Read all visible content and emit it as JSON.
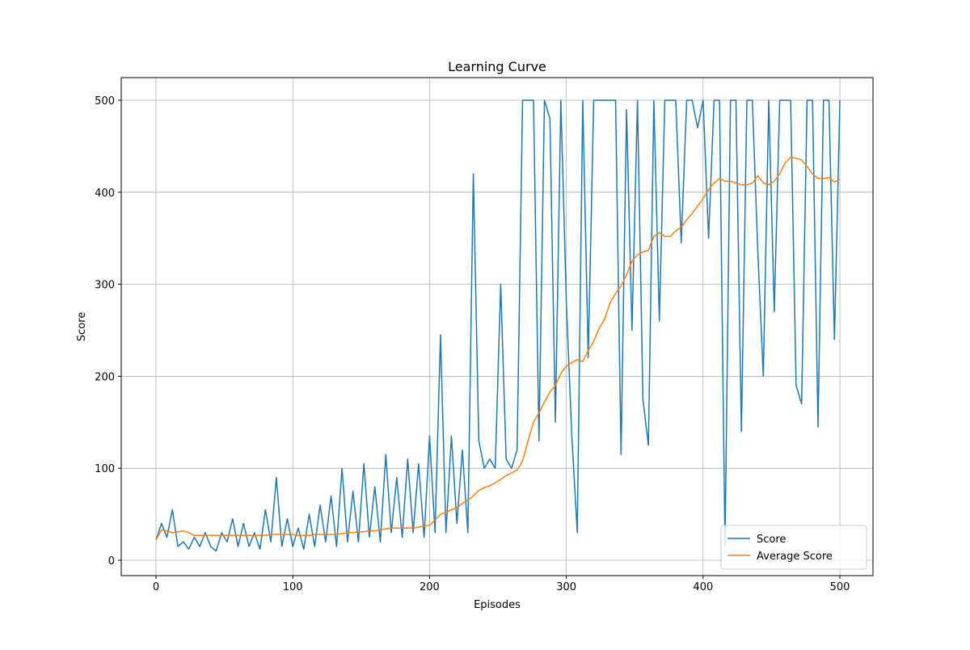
{
  "chart_data": {
    "type": "line",
    "title": "Learning Curve",
    "x_label": "Episodes",
    "y_label": "Score",
    "x": [
      0,
      4,
      8,
      12,
      16,
      20,
      24,
      28,
      32,
      36,
      40,
      44,
      48,
      52,
      56,
      60,
      64,
      68,
      72,
      76,
      80,
      84,
      88,
      92,
      96,
      100,
      104,
      108,
      112,
      116,
      120,
      124,
      128,
      132,
      136,
      140,
      144,
      148,
      152,
      156,
      160,
      164,
      168,
      172,
      176,
      180,
      184,
      188,
      192,
      196,
      200,
      204,
      208,
      212,
      216,
      220,
      224,
      228,
      232,
      236,
      240,
      244,
      248,
      252,
      256,
      260,
      264,
      268,
      272,
      276,
      280,
      284,
      288,
      292,
      296,
      300,
      304,
      308,
      312,
      316,
      320,
      324,
      328,
      332,
      336,
      340,
      344,
      348,
      352,
      356,
      360,
      364,
      368,
      372,
      376,
      380,
      384,
      388,
      392,
      396,
      400,
      404,
      408,
      412,
      416,
      420,
      424,
      428,
      432,
      436,
      440,
      444,
      448,
      452,
      456,
      460,
      464,
      468,
      472,
      476,
      480,
      484,
      488,
      492,
      496,
      500
    ],
    "series": [
      {
        "name": "Score",
        "color": "#1f77b4",
        "values": [
          22,
          40,
          25,
          55,
          15,
          20,
          12,
          25,
          15,
          30,
          15,
          10,
          30,
          20,
          45,
          15,
          40,
          15,
          30,
          12,
          55,
          20,
          90,
          15,
          45,
          15,
          35,
          12,
          50,
          15,
          60,
          20,
          70,
          15,
          100,
          20,
          75,
          20,
          105,
          25,
          80,
          20,
          115,
          30,
          90,
          25,
          110,
          30,
          105,
          25,
          135,
          30,
          245,
          30,
          135,
          40,
          120,
          30,
          420,
          130,
          100,
          110,
          100,
          300,
          110,
          100,
          120,
          500,
          500,
          500,
          130,
          500,
          480,
          150,
          500,
          280,
          135,
          30,
          500,
          220,
          500,
          500,
          500,
          500,
          500,
          115,
          490,
          250,
          500,
          175,
          125,
          500,
          260,
          500,
          500,
          500,
          345,
          500,
          500,
          470,
          500,
          350,
          500,
          500,
          15,
          500,
          500,
          140,
          500,
          500,
          335,
          200,
          500,
          270,
          500,
          500,
          500,
          190,
          170,
          500,
          500,
          145,
          500,
          500,
          240,
          500
        ]
      },
      {
        "name": "Average Score",
        "color": "#ff7f0e",
        "values": [
          22,
          33,
          32,
          30,
          31,
          32,
          30,
          27,
          27,
          27,
          27,
          27,
          27,
          27,
          27,
          27,
          27,
          27,
          27,
          27,
          27,
          28,
          28,
          28,
          28,
          28,
          27,
          27,
          27,
          28,
          28,
          28,
          28,
          28,
          29,
          30,
          30,
          31,
          31,
          32,
          32,
          33,
          34,
          35,
          35,
          35,
          35,
          35,
          36,
          37,
          38,
          44,
          50,
          52,
          55,
          57,
          62,
          65,
          70,
          76,
          79,
          81,
          84,
          88,
          92,
          95,
          98,
          108,
          130,
          150,
          160,
          172,
          183,
          190,
          203,
          211,
          215,
          218,
          216,
          228,
          238,
          252,
          262,
          280,
          290,
          298,
          310,
          325,
          332,
          335,
          337,
          352,
          356,
          352,
          352,
          358,
          362,
          370,
          377,
          385,
          393,
          403,
          410,
          415,
          412,
          412,
          410,
          408,
          408,
          410,
          418,
          410,
          408,
          412,
          420,
          432,
          438,
          437,
          435,
          428,
          420,
          415,
          415,
          416,
          411,
          414
        ]
      }
    ],
    "xlim": [
      -25.4,
      524.2
    ],
    "ylim": [
      -16.7,
      524.6
    ],
    "xticks": [
      0,
      100,
      200,
      300,
      400,
      500
    ],
    "yticks": [
      0,
      100,
      200,
      300,
      400,
      500
    ],
    "grid": true,
    "legend": "lower right"
  }
}
